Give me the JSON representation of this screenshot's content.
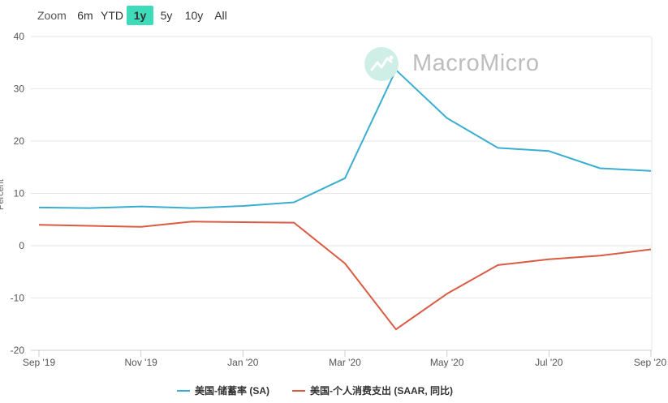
{
  "toolbar": {
    "zoom_label": "Zoom",
    "buttons": [
      "6m",
      "YTD",
      "1y",
      "5y",
      "10y",
      "All"
    ],
    "active": "1y"
  },
  "watermark": {
    "text": "MacroMicro"
  },
  "colors": {
    "series1": "#3aaed0",
    "series2": "#d95b43",
    "active_zoom": "#3ddbb9",
    "grid": "#e6e6e6"
  },
  "chart_data": {
    "type": "line",
    "title": "",
    "xlabel": "",
    "ylabel": "Percent",
    "ylim": [
      -20,
      40
    ],
    "yticks": [
      40,
      30,
      20,
      10,
      0,
      -10,
      -20
    ],
    "xtick_labels": [
      "Sep '19",
      "Nov '19",
      "Jan '20",
      "Mar '20",
      "May '20",
      "Jul '20",
      "Sep '20"
    ],
    "x": [
      "2019-09",
      "2019-10",
      "2019-11",
      "2019-12",
      "2020-01",
      "2020-02",
      "2020-03",
      "2020-04",
      "2020-05",
      "2020-06",
      "2020-07",
      "2020-08",
      "2020-09"
    ],
    "grid": true,
    "legend_position": "bottom-center",
    "series": [
      {
        "name": "美国-储蓄率 (SA)",
        "values": [
          7.3,
          7.2,
          7.5,
          7.2,
          7.6,
          8.3,
          12.9,
          33.6,
          24.4,
          18.7,
          18.1,
          14.8,
          14.3
        ]
      },
      {
        "name": "美国-个人消费支出 (SAAR, 同比)",
        "values": [
          4.0,
          3.8,
          3.6,
          4.6,
          4.5,
          4.4,
          -3.4,
          -16.0,
          -9.2,
          -3.7,
          -2.6,
          -1.9,
          -0.7
        ]
      }
    ]
  }
}
